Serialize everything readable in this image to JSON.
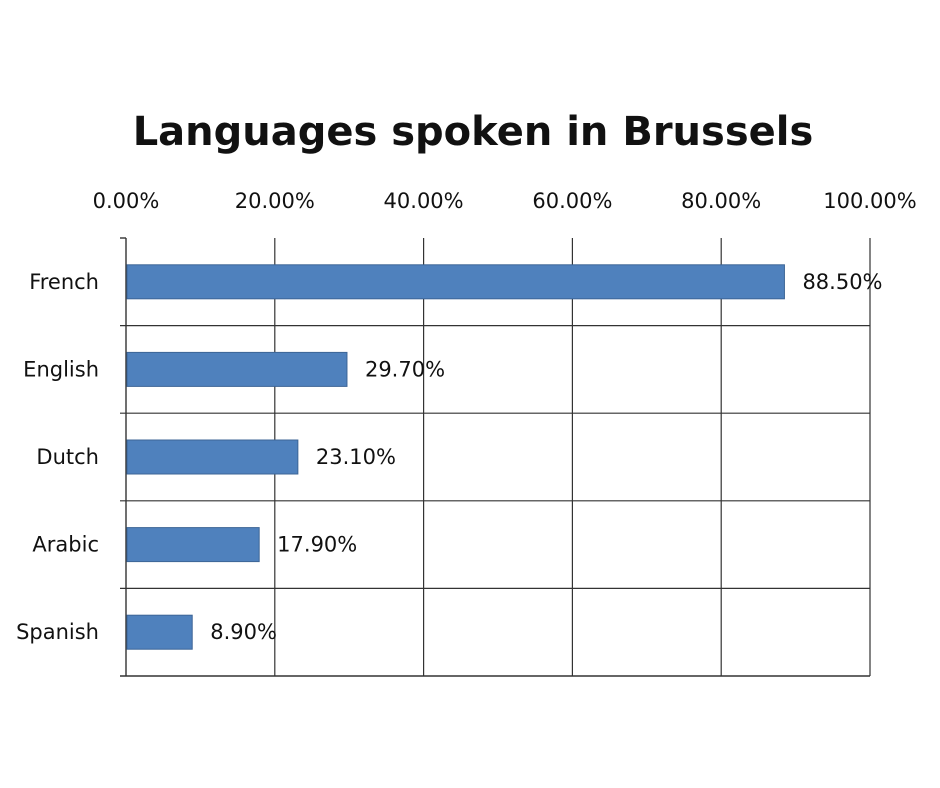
{
  "chart_data": {
    "type": "bar",
    "orientation": "horizontal",
    "title": "Languages spoken in Brussels",
    "categories": [
      "French",
      "English",
      "Dutch",
      "Arabic",
      "Spanish"
    ],
    "values": [
      88.5,
      29.7,
      23.1,
      17.9,
      8.9
    ],
    "data_labels": [
      "88.50%",
      "29.70%",
      "23.10%",
      "17.90%",
      "8.90%"
    ],
    "xlim": [
      0,
      100
    ],
    "x_ticks": [
      "0.00%",
      "20.00%",
      "40.00%",
      "60.00%",
      "80.00%",
      "100.00%"
    ],
    "x_axis_position": "top",
    "grid": true,
    "legend": "none",
    "bar_color": "#4f81bd",
    "bar_edge_color": "#3c6596"
  }
}
